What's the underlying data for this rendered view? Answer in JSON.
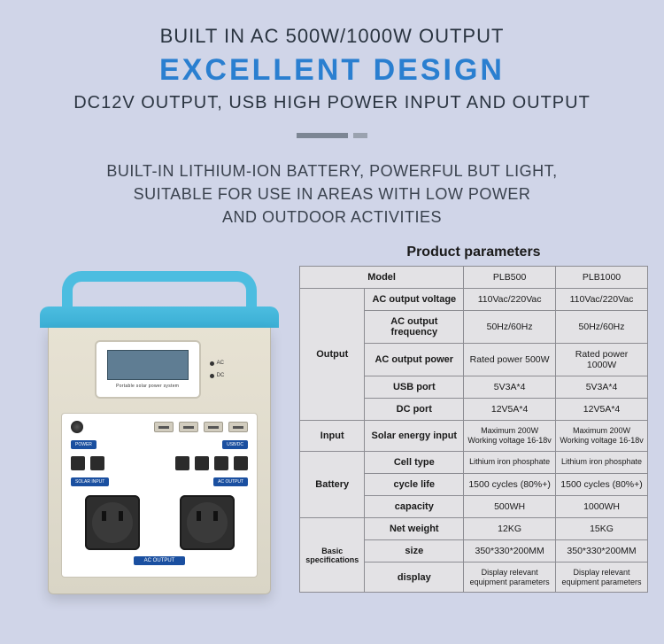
{
  "header": {
    "line1": "BUILT IN AC 500W/1000W OUTPUT",
    "line2": "EXCELLENT DESIGN",
    "line3": "DC12V OUTPUT, USB HIGH POWER INPUT AND OUTPUT",
    "sub1": "BUILT-IN LITHIUM-ION BATTERY, POWERFUL BUT LIGHT,",
    "sub2": "SUITABLE FOR USE IN AREAS WITH LOW POWER",
    "sub3": "AND OUTDOOR ACTIVITIES"
  },
  "device": {
    "lcd_label": "Portable solar power system",
    "led_ac": "AC",
    "led_dc": "DC",
    "btn_power": "POWER",
    "btn_usbdc": "USB/DC",
    "solar_input": "SOLAR INPUT",
    "ac_output": "AC OUTPUT"
  },
  "table": {
    "title": "Product parameters",
    "head_model": "Model",
    "model_a": "PLB500",
    "model_b": "PLB1000",
    "groups": [
      {
        "name": "Output",
        "rows": [
          {
            "param": "AC output voltage",
            "a": "110Vac/220Vac",
            "b": "110Vac/220Vac"
          },
          {
            "param": "AC output frequency",
            "a": "50Hz/60Hz",
            "b": "50Hz/60Hz"
          },
          {
            "param": "AC output power",
            "a": "Rated power 500W",
            "b": "Rated power 1000W"
          },
          {
            "param": "USB port",
            "a": "5V3A*4",
            "b": "5V3A*4"
          },
          {
            "param": "DC port",
            "a": "12V5A*4",
            "b": "12V5A*4"
          }
        ]
      },
      {
        "name": "Input",
        "rows": [
          {
            "param": "Solar energy input",
            "a": "Maximum 200W\nWorking voltage 16-18v",
            "b": "Maximum 200W\nWorking voltage 16-18v",
            "small": true
          }
        ]
      },
      {
        "name": "Battery",
        "rows": [
          {
            "param": "Cell type",
            "a": "Lithium iron phosphate",
            "b": "Lithium iron phosphate",
            "small": true
          },
          {
            "param": "cycle life",
            "a": "1500 cycles (80%+)",
            "b": "1500 cycles (80%+)"
          },
          {
            "param": "capacity",
            "a": "500WH",
            "b": "1000WH"
          }
        ]
      },
      {
        "name": "Basic specifications",
        "rows": [
          {
            "param": "Net weight",
            "a": "12KG",
            "b": "15KG"
          },
          {
            "param": "size",
            "a": "350*330*200MM",
            "b": "350*330*200MM"
          },
          {
            "param": "display",
            "a": "Display relevant\nequipment parameters",
            "b": "Display relevant\nequipment parameters",
            "small": true
          }
        ]
      }
    ]
  },
  "colors": {
    "bg": "#d0d5e8",
    "accent_blue": "#2a7fd0",
    "dark_text": "#2a3440",
    "device_blue": "#4cbde0",
    "device_body": "#e7e2d3",
    "table_bg": "#e3e2e5",
    "table_border": "#8c8c92"
  }
}
